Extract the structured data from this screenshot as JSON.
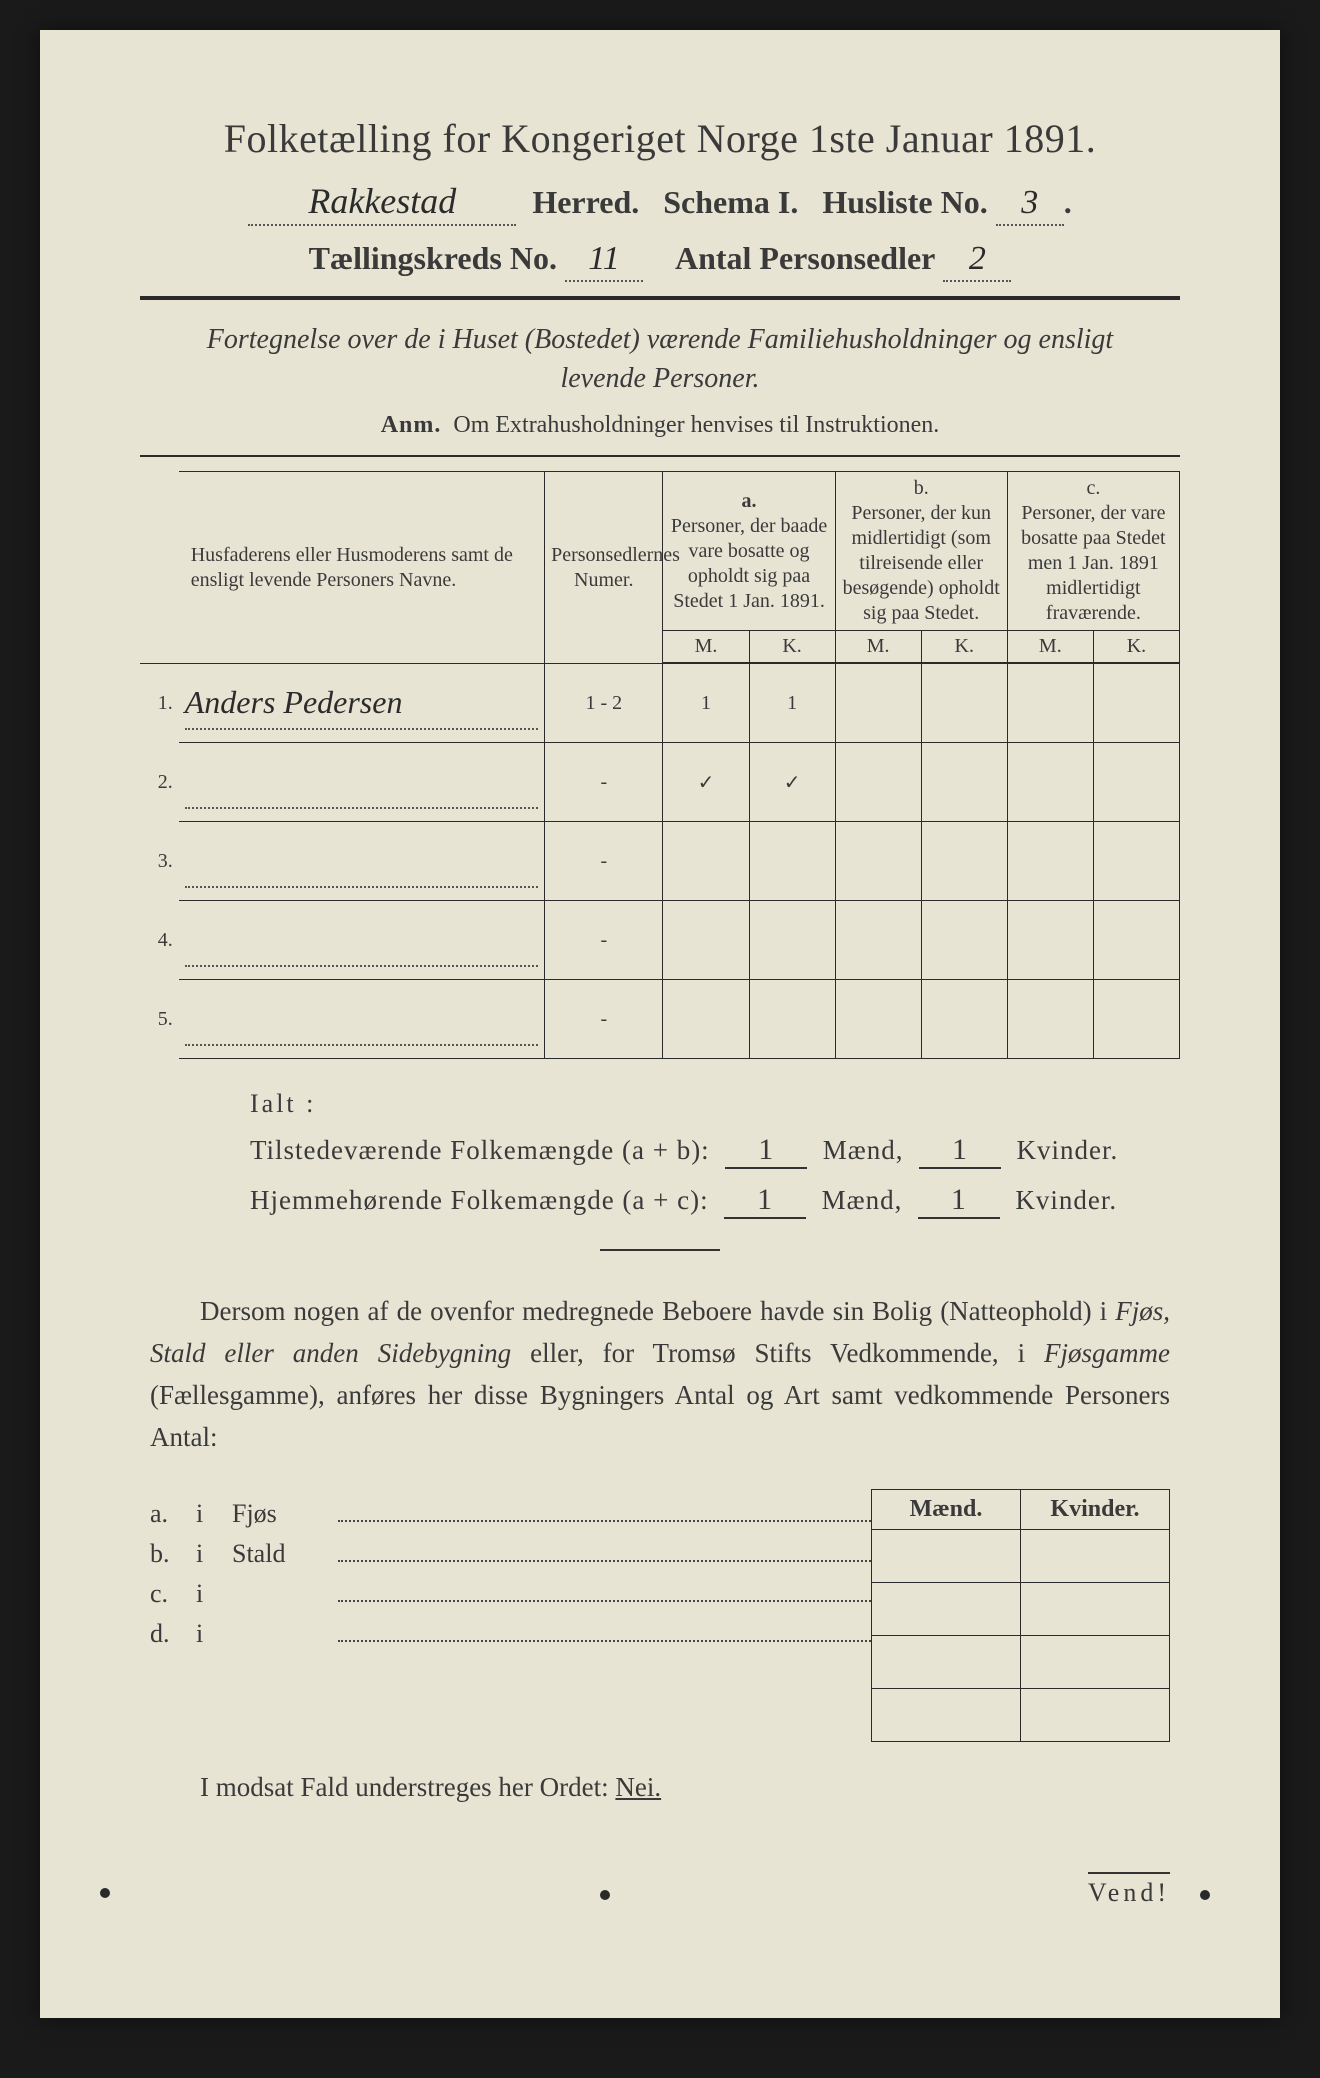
{
  "colors": {
    "paper": "#e8e4d4",
    "ink": "#2a2a2a",
    "outer": "#1a1a1a",
    "handwriting": "#2b2b2b"
  },
  "header": {
    "title": "Folketælling for Kongeriget Norge 1ste Januar 1891.",
    "herred_hw": "Rakkestad",
    "herred_lbl": "Herred.",
    "schema_lbl": "Schema I.",
    "husliste_lbl": "Husliste No.",
    "husliste_no": "3",
    "kreds_lbl": "Tællingskreds No.",
    "kreds_no": "11",
    "antal_lbl": "Antal Personsedler",
    "antal_no": "2"
  },
  "subtitle": "Fortegnelse over de i Huset (Bostedet) værende Familiehusholdninger og ensligt levende Personer.",
  "anm": {
    "lbl": "Anm.",
    "text": "Om Extrahusholdninger henvises til Instruktionen."
  },
  "table": {
    "col_name": "Husfaderens eller Husmoderens samt de ensligt levende Personers Navne.",
    "col_num": "Personsedlernes Numer.",
    "col_a_tag": "a.",
    "col_a": "Personer, der baade vare bosatte og opholdt sig paa Stedet 1 Jan. 1891.",
    "col_b_tag": "b.",
    "col_b": "Personer, der kun midlertidigt (som tilreisende eller besøgende) opholdt sig paa Stedet.",
    "col_c_tag": "c.",
    "col_c": "Personer, der vare bosatte paa Stedet men 1 Jan. 1891 midlertidigt fraværende.",
    "mk_m": "M.",
    "mk_k": "K.",
    "rows": [
      {
        "n": "1.",
        "name": "Anders Pedersen",
        "num": "1 - 2",
        "aM": "1",
        "aK": "1",
        "bM": "",
        "bK": "",
        "cM": "",
        "cK": ""
      },
      {
        "n": "2.",
        "name": "",
        "num": "-",
        "aM": "✓",
        "aK": "✓",
        "bM": "",
        "bK": "",
        "cM": "",
        "cK": ""
      },
      {
        "n": "3.",
        "name": "",
        "num": "-",
        "aM": "",
        "aK": "",
        "bM": "",
        "bK": "",
        "cM": "",
        "cK": ""
      },
      {
        "n": "4.",
        "name": "",
        "num": "-",
        "aM": "",
        "aK": "",
        "bM": "",
        "bK": "",
        "cM": "",
        "cK": ""
      },
      {
        "n": "5.",
        "name": "",
        "num": "-",
        "aM": "",
        "aK": "",
        "bM": "",
        "bK": "",
        "cM": "",
        "cK": ""
      }
    ]
  },
  "totals": {
    "ialt": "Ialt :",
    "line1_lbl": "Tilstedeværende Folkemængde (a + b):",
    "line2_lbl": "Hjemmehørende Folkemængde (a + c):",
    "maend": "Mænd,",
    "kvinder": "Kvinder.",
    "l1_m": "1",
    "l1_k": "1",
    "l2_m": "1",
    "l2_k": "1"
  },
  "para": {
    "p1": "Dersom nogen af de ovenfor medregnede Beboere havde sin Bolig (Natteophold) i ",
    "i1": "Fjøs, Stald eller anden Sidebygning",
    "p2": " eller, for Tromsø Stifts Vedkommende, i ",
    "i2": "Fjøsgamme",
    "p3": " (Fællesgamme), anføres her disse Bygningers Antal og Art samt vedkommende Personers Antal:"
  },
  "sb": {
    "head_m": "Mænd.",
    "head_k": "Kvinder.",
    "rows": [
      {
        "tag": "a.",
        "i": "i",
        "name": "Fjøs"
      },
      {
        "tag": "b.",
        "i": "i",
        "name": "Stald"
      },
      {
        "tag": "c.",
        "i": "i",
        "name": ""
      },
      {
        "tag": "d.",
        "i": "i",
        "name": ""
      }
    ]
  },
  "nei": {
    "pre": "I modsat Fald understreges her Ordet: ",
    "word": "Nei."
  },
  "vend": "Vend!"
}
